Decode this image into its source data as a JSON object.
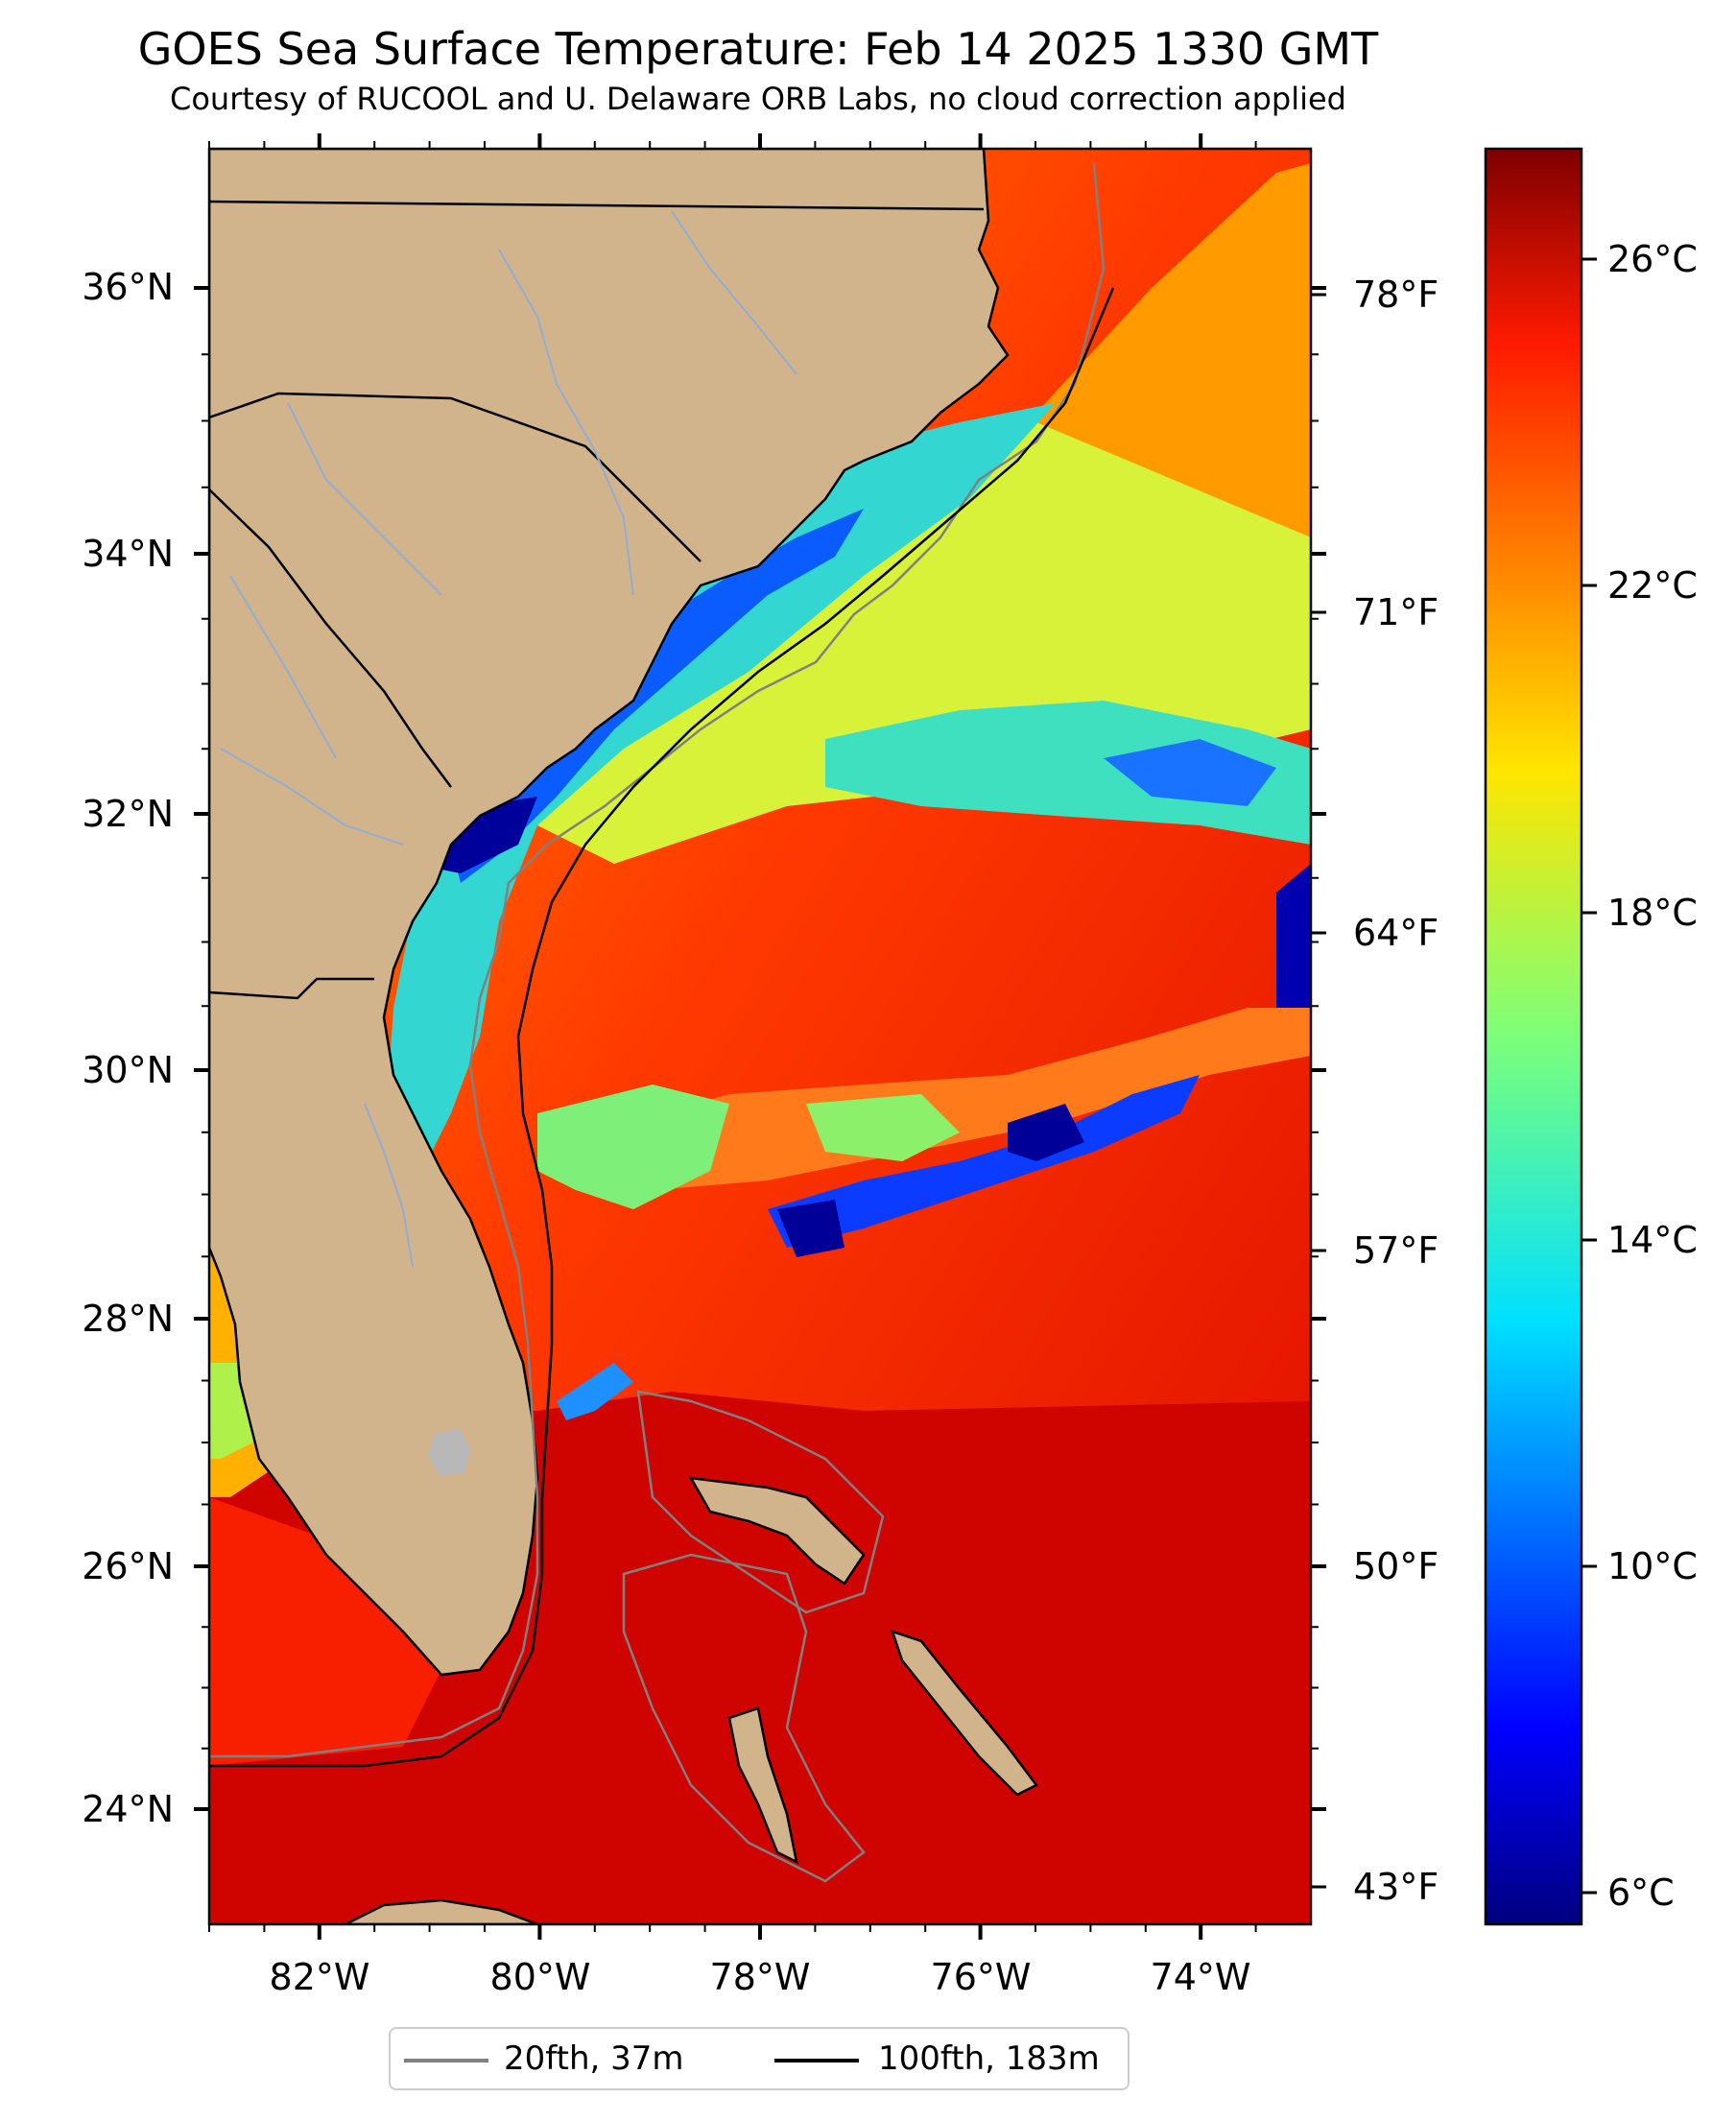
{
  "header": {
    "title": "GOES Sea Surface Temperature: Feb 14 2025 1330 GMT",
    "subtitle": "Courtesy of RUCOOL and U. Delaware ORB Labs, no cloud correction applied"
  },
  "map": {
    "extent": {
      "lon_west": -83,
      "lon_east": -73,
      "lat_south": 23.1,
      "lat_north": 37.1
    },
    "lat_ticks": [
      "36°N",
      "34°N",
      "32°N",
      "30°N",
      "28°N",
      "26°N",
      "24°N"
    ],
    "lon_ticks": [
      "82°W",
      "80°W",
      "78°W",
      "76°W",
      "74°W"
    ],
    "land_color": "#d2b48c",
    "river_color": "#93acd1",
    "isobath_20_color": "#808080",
    "isobath_100_color": "#000000"
  },
  "colorbar": {
    "celsius_ticks": [
      "26°C",
      "22°C",
      "18°C",
      "14°C",
      "10°C",
      "6°C"
    ],
    "fahrenheit_ticks": [
      "78°F",
      "71°F",
      "64°F",
      "57°F",
      "50°F",
      "43°F"
    ],
    "colormap": "jet",
    "range_c": [
      5.5,
      27.2
    ]
  },
  "legend": {
    "items": [
      {
        "label": "20fth, 37m",
        "color": "#808080"
      },
      {
        "label": "100fth, 183m",
        "color": "#000000"
      }
    ]
  }
}
